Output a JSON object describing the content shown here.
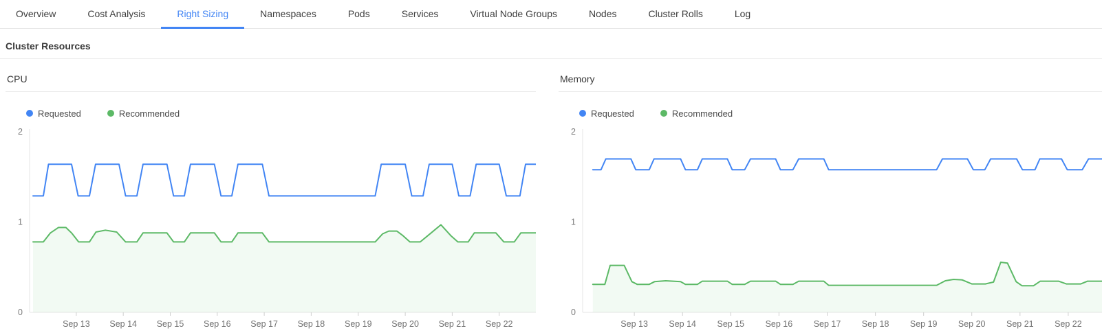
{
  "colors": {
    "accent": "#4285F4",
    "requested_series": "#4285F4",
    "recommended_series": "#5CB966"
  },
  "tabs": {
    "items": [
      {
        "label": "Overview",
        "active": false
      },
      {
        "label": "Cost Analysis",
        "active": false
      },
      {
        "label": "Right Sizing",
        "active": true
      },
      {
        "label": "Namespaces",
        "active": false
      },
      {
        "label": "Pods",
        "active": false
      },
      {
        "label": "Services",
        "active": false
      },
      {
        "label": "Virtual Node Groups",
        "active": false
      },
      {
        "label": "Nodes",
        "active": false
      },
      {
        "label": "Cluster Rolls",
        "active": false
      },
      {
        "label": "Log",
        "active": false
      }
    ]
  },
  "section": {
    "title": "Cluster Resources"
  },
  "chart_data": [
    {
      "type": "line",
      "title": "CPU",
      "x_range": [
        12.08,
        22.78
      ],
      "y_range": [
        0,
        2
      ],
      "y_ticks": [
        2,
        1,
        0
      ],
      "x_ticks": [
        13,
        14,
        15,
        16,
        17,
        18,
        19,
        20,
        21,
        22
      ],
      "x_tick_labels": [
        "Sep 13",
        "Sep 14",
        "Sep 15",
        "Sep 16",
        "Sep 17",
        "Sep 18",
        "Sep 19",
        "Sep 20",
        "Sep 21",
        "Sep 22"
      ],
      "legend_position": "top-left",
      "grid": false,
      "series": [
        {
          "name": "Requested",
          "color": "#4285F4",
          "area": false,
          "points": [
            [
              12.08,
              1.29
            ],
            [
              12.3,
              1.29
            ],
            [
              12.41,
              1.64
            ],
            [
              12.9,
              1.64
            ],
            [
              13.04,
              1.29
            ],
            [
              13.28,
              1.29
            ],
            [
              13.41,
              1.64
            ],
            [
              13.91,
              1.64
            ],
            [
              14.05,
              1.29
            ],
            [
              14.29,
              1.29
            ],
            [
              14.42,
              1.64
            ],
            [
              14.93,
              1.64
            ],
            [
              15.07,
              1.29
            ],
            [
              15.3,
              1.29
            ],
            [
              15.43,
              1.64
            ],
            [
              15.94,
              1.64
            ],
            [
              16.08,
              1.29
            ],
            [
              16.31,
              1.29
            ],
            [
              16.44,
              1.64
            ],
            [
              16.96,
              1.64
            ],
            [
              17.1,
              1.29
            ],
            [
              19.36,
              1.29
            ],
            [
              19.49,
              1.64
            ],
            [
              20.0,
              1.64
            ],
            [
              20.14,
              1.29
            ],
            [
              20.38,
              1.29
            ],
            [
              20.51,
              1.64
            ],
            [
              21.0,
              1.64
            ],
            [
              21.14,
              1.29
            ],
            [
              21.38,
              1.29
            ],
            [
              21.51,
              1.64
            ],
            [
              22.0,
              1.64
            ],
            [
              22.15,
              1.29
            ],
            [
              22.44,
              1.29
            ],
            [
              22.56,
              1.64
            ],
            [
              22.78,
              1.64
            ]
          ]
        },
        {
          "name": "Recommended",
          "color": "#5CB966",
          "area": true,
          "area_color": "rgba(92,185,102,0.08)",
          "points": [
            [
              12.08,
              0.78
            ],
            [
              12.3,
              0.78
            ],
            [
              12.45,
              0.88
            ],
            [
              12.62,
              0.94
            ],
            [
              12.78,
              0.94
            ],
            [
              12.9,
              0.88
            ],
            [
              13.05,
              0.78
            ],
            [
              13.28,
              0.78
            ],
            [
              13.42,
              0.89
            ],
            [
              13.62,
              0.91
            ],
            [
              13.86,
              0.89
            ],
            [
              14.05,
              0.78
            ],
            [
              14.29,
              0.78
            ],
            [
              14.42,
              0.88
            ],
            [
              14.93,
              0.88
            ],
            [
              15.07,
              0.78
            ],
            [
              15.3,
              0.78
            ],
            [
              15.43,
              0.88
            ],
            [
              15.94,
              0.88
            ],
            [
              16.08,
              0.78
            ],
            [
              16.31,
              0.78
            ],
            [
              16.44,
              0.88
            ],
            [
              16.96,
              0.88
            ],
            [
              17.1,
              0.78
            ],
            [
              19.36,
              0.78
            ],
            [
              19.52,
              0.87
            ],
            [
              19.65,
              0.9
            ],
            [
              19.82,
              0.9
            ],
            [
              19.95,
              0.85
            ],
            [
              20.1,
              0.78
            ],
            [
              20.32,
              0.78
            ],
            [
              20.55,
              0.88
            ],
            [
              20.76,
              0.97
            ],
            [
              20.97,
              0.85
            ],
            [
              21.12,
              0.78
            ],
            [
              21.34,
              0.78
            ],
            [
              21.47,
              0.88
            ],
            [
              21.93,
              0.88
            ],
            [
              22.1,
              0.78
            ],
            [
              22.32,
              0.78
            ],
            [
              22.46,
              0.88
            ],
            [
              22.78,
              0.88
            ]
          ]
        }
      ]
    },
    {
      "type": "line",
      "title": "Memory",
      "x_range": [
        12.0,
        22.7
      ],
      "y_range": [
        0,
        2
      ],
      "y_ticks": [
        2,
        1,
        0
      ],
      "x_ticks": [
        13,
        14,
        15,
        16,
        17,
        18,
        19,
        20,
        21,
        22
      ],
      "x_tick_labels": [
        "Sep 13",
        "Sep 14",
        "Sep 15",
        "Sep 16",
        "Sep 17",
        "Sep 18",
        "Sep 19",
        "Sep 20",
        "Sep 21",
        "Sep 22"
      ],
      "legend_position": "top-left",
      "grid": false,
      "series": [
        {
          "name": "Requested",
          "color": "#4285F4",
          "area": false,
          "points": [
            [
              12.14,
              1.58
            ],
            [
              12.31,
              1.58
            ],
            [
              12.41,
              1.7
            ],
            [
              12.93,
              1.7
            ],
            [
              13.03,
              1.58
            ],
            [
              13.31,
              1.58
            ],
            [
              13.41,
              1.7
            ],
            [
              13.96,
              1.7
            ],
            [
              14.06,
              1.58
            ],
            [
              14.31,
              1.58
            ],
            [
              14.41,
              1.7
            ],
            [
              14.93,
              1.7
            ],
            [
              15.03,
              1.58
            ],
            [
              15.29,
              1.58
            ],
            [
              15.41,
              1.7
            ],
            [
              15.93,
              1.7
            ],
            [
              16.03,
              1.58
            ],
            [
              16.29,
              1.58
            ],
            [
              16.41,
              1.7
            ],
            [
              16.93,
              1.7
            ],
            [
              17.03,
              1.58
            ],
            [
              19.27,
              1.58
            ],
            [
              19.39,
              1.7
            ],
            [
              19.91,
              1.7
            ],
            [
              20.03,
              1.58
            ],
            [
              20.27,
              1.58
            ],
            [
              20.39,
              1.7
            ],
            [
              20.93,
              1.7
            ],
            [
              21.05,
              1.58
            ],
            [
              21.31,
              1.58
            ],
            [
              21.41,
              1.7
            ],
            [
              21.86,
              1.7
            ],
            [
              21.98,
              1.58
            ],
            [
              22.29,
              1.58
            ],
            [
              22.42,
              1.7
            ],
            [
              22.7,
              1.7
            ]
          ]
        },
        {
          "name": "Recommended",
          "color": "#5CB966",
          "area": true,
          "area_color": "rgba(92,185,102,0.08)",
          "points": [
            [
              12.14,
              0.31
            ],
            [
              12.39,
              0.31
            ],
            [
              12.5,
              0.52
            ],
            [
              12.79,
              0.52
            ],
            [
              12.95,
              0.34
            ],
            [
              13.06,
              0.31
            ],
            [
              13.31,
              0.31
            ],
            [
              13.42,
              0.34
            ],
            [
              13.65,
              0.35
            ],
            [
              13.96,
              0.34
            ],
            [
              14.06,
              0.31
            ],
            [
              14.31,
              0.31
            ],
            [
              14.41,
              0.345
            ],
            [
              14.93,
              0.345
            ],
            [
              15.03,
              0.31
            ],
            [
              15.29,
              0.31
            ],
            [
              15.41,
              0.345
            ],
            [
              15.93,
              0.345
            ],
            [
              16.03,
              0.31
            ],
            [
              16.29,
              0.31
            ],
            [
              16.41,
              0.345
            ],
            [
              16.93,
              0.345
            ],
            [
              17.03,
              0.3
            ],
            [
              19.27,
              0.3
            ],
            [
              19.45,
              0.35
            ],
            [
              19.62,
              0.365
            ],
            [
              19.8,
              0.36
            ],
            [
              20.0,
              0.315
            ],
            [
              20.28,
              0.315
            ],
            [
              20.45,
              0.335
            ],
            [
              20.6,
              0.555
            ],
            [
              20.74,
              0.545
            ],
            [
              20.92,
              0.34
            ],
            [
              21.04,
              0.295
            ],
            [
              21.28,
              0.295
            ],
            [
              21.42,
              0.345
            ],
            [
              21.8,
              0.345
            ],
            [
              21.96,
              0.315
            ],
            [
              22.26,
              0.315
            ],
            [
              22.4,
              0.345
            ],
            [
              22.7,
              0.345
            ]
          ]
        }
      ]
    }
  ]
}
